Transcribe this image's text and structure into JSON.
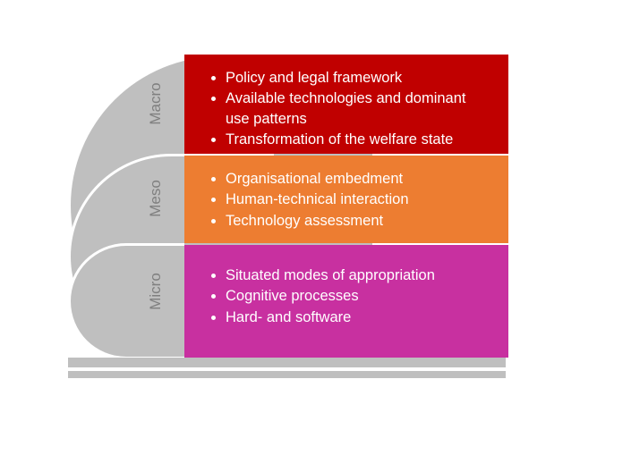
{
  "diagram": {
    "type": "infographic",
    "background_color": "#ffffff",
    "arc_color": "#bfbfbf",
    "arc_border_color": "#ffffff",
    "label_color": "#7f7f7f",
    "label_fontsize": 17,
    "panel_text_color": "#ffffff",
    "panel_fontsize": 16.5,
    "levels": [
      {
        "id": "macro",
        "label": "Macro",
        "color": "#c00000",
        "items": [
          "Policy and legal framework",
          "Available technologies and dominant use patterns",
          "Transformation of the welfare state"
        ]
      },
      {
        "id": "meso",
        "label": "Meso",
        "color": "#ed7d31",
        "items": [
          "Organisational embedment",
          "Human-technical interaction",
          "Technology assessment"
        ]
      },
      {
        "id": "micro",
        "label": "Micro",
        "color": "#c830a0",
        "items": [
          "Situated modes of appropriation",
          "Cognitive processes",
          "Hard- and software"
        ]
      }
    ]
  }
}
